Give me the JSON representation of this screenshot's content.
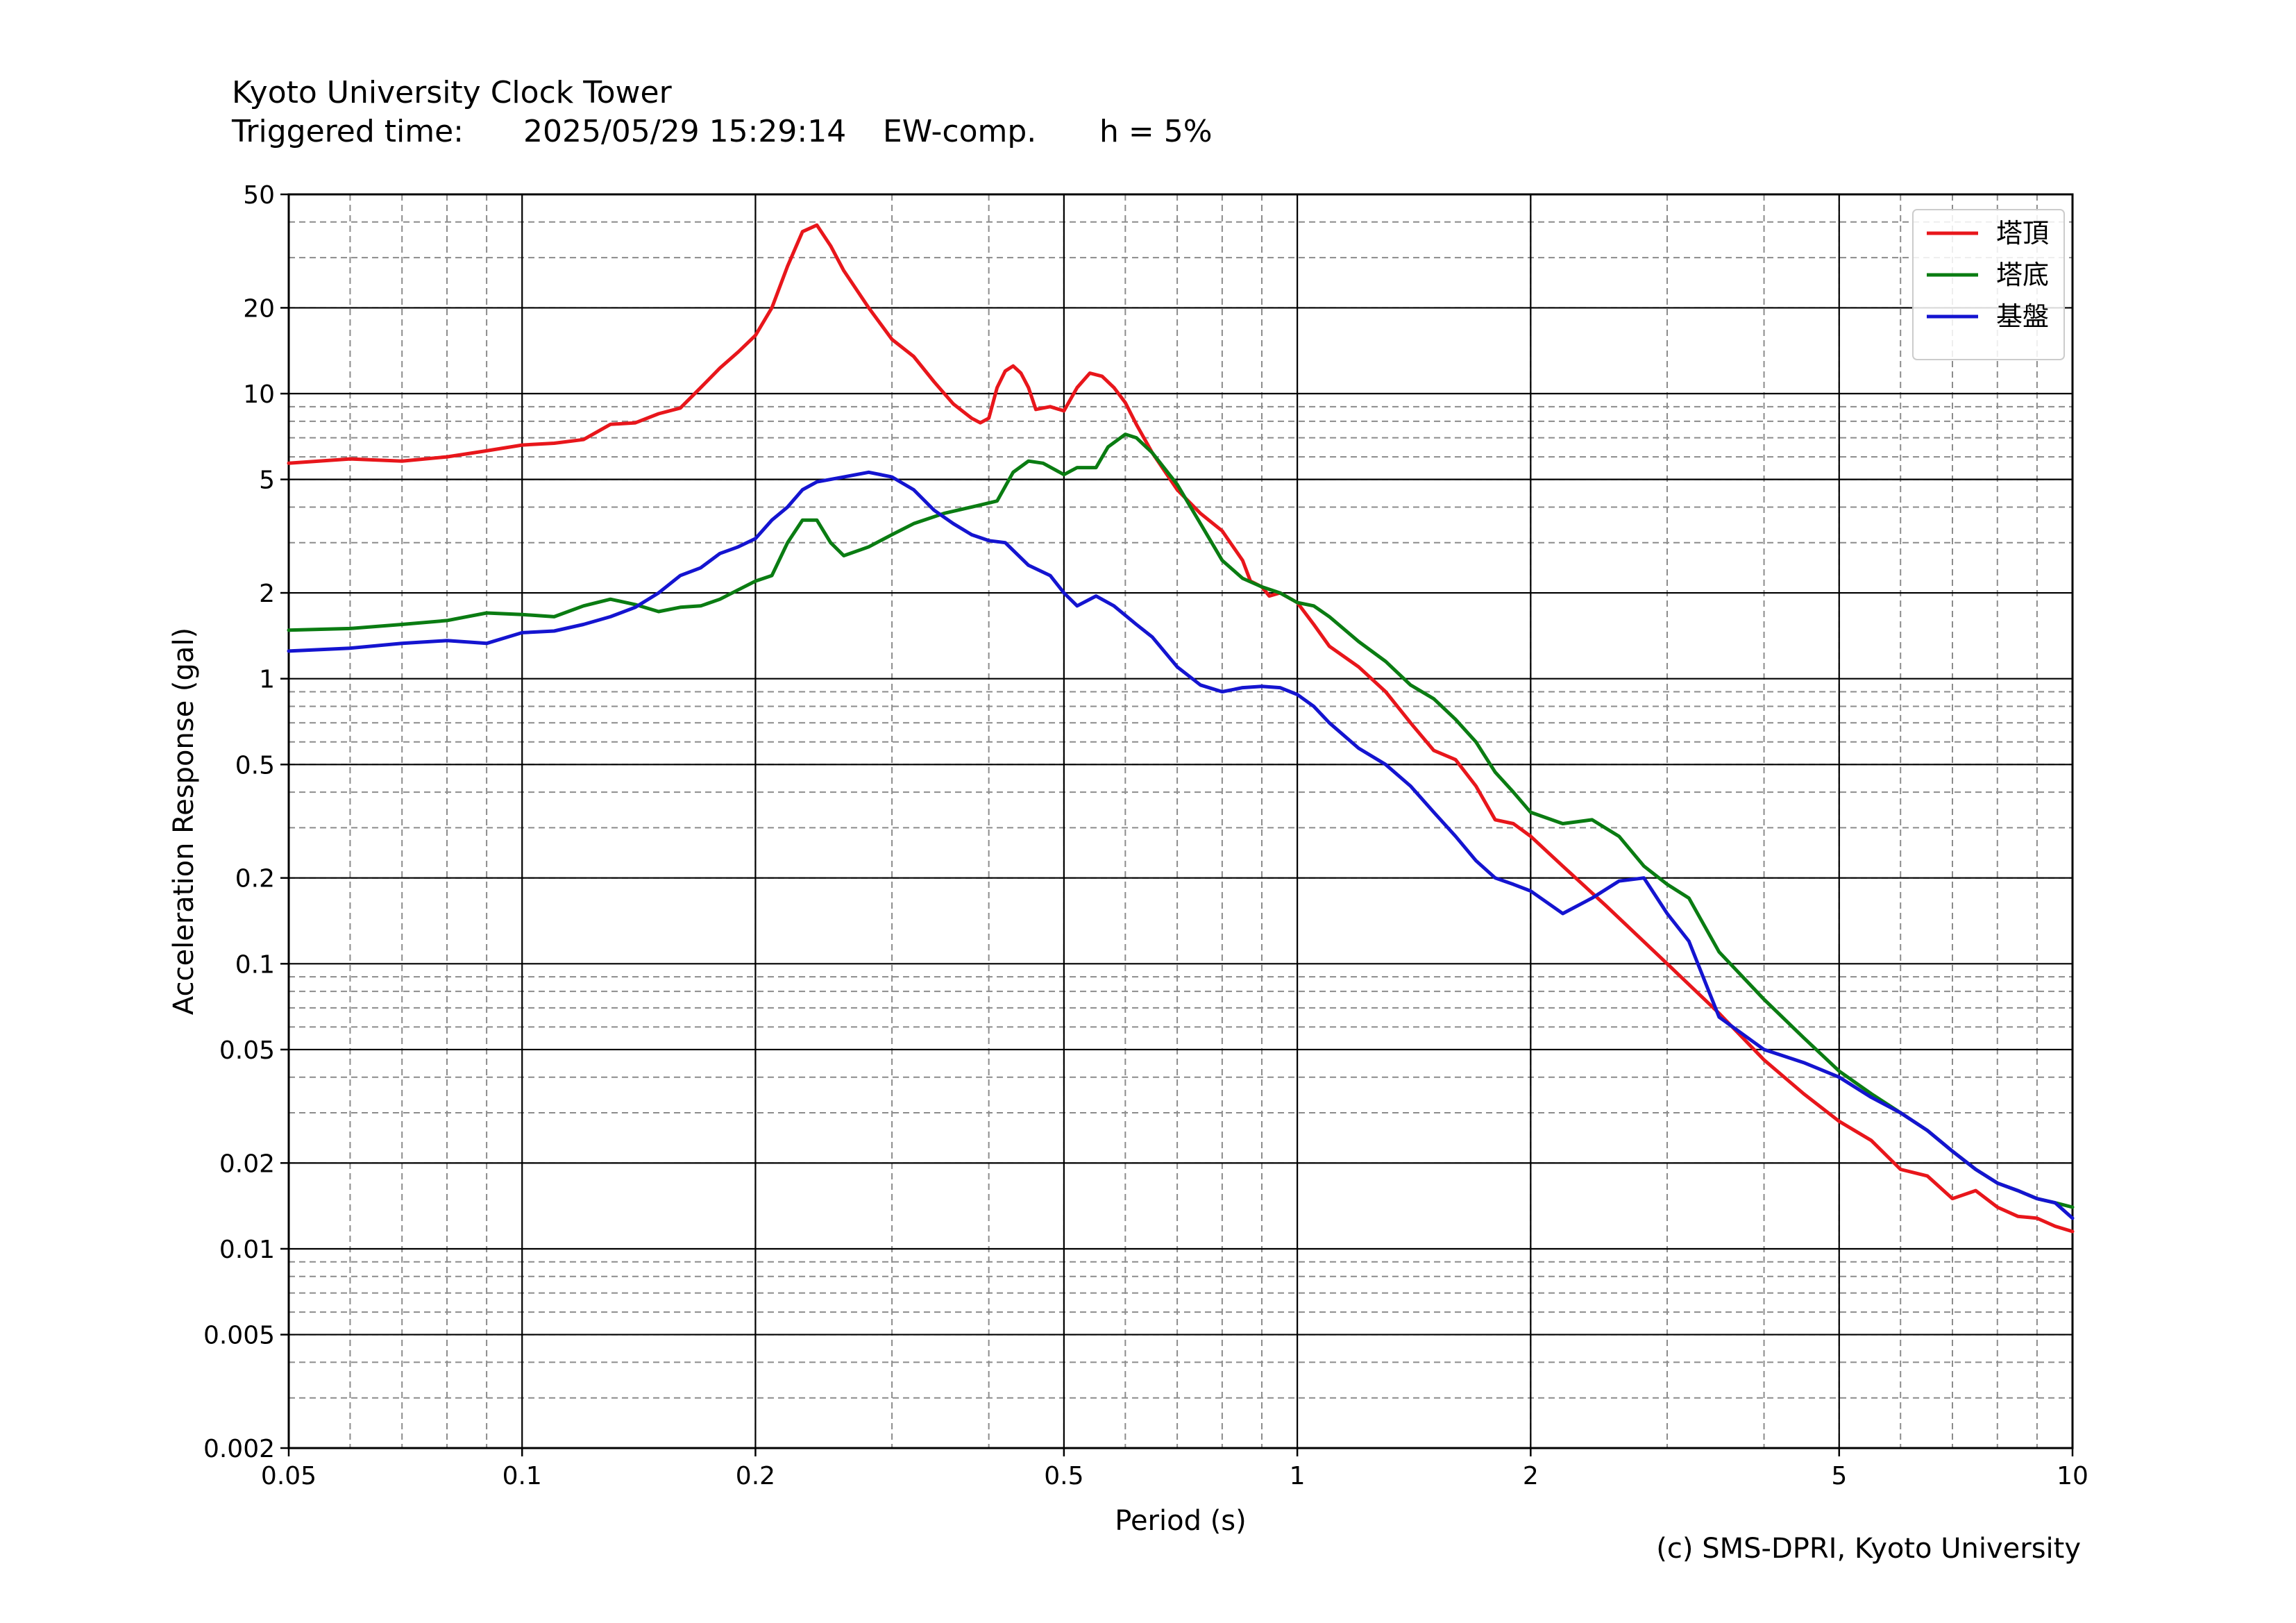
{
  "header": {
    "title": "Kyoto University Clock Tower",
    "triggered_label": "Triggered time:",
    "triggered_time": "2025/05/29 15:29:14",
    "component": "EW-comp.",
    "damping": "h = 5%"
  },
  "footer": {
    "copyright": "(c) SMS-DPRI, Kyoto University"
  },
  "chart_data": {
    "type": "line",
    "title": "",
    "xlabel": "Period (s)",
    "ylabel": "Acceleration Response (gal)",
    "xscale": "log",
    "yscale": "log",
    "xlim": [
      0.05,
      10
    ],
    "ylim": [
      0.002,
      50
    ],
    "grid": true,
    "legend_position": "top-right",
    "x_ticks": [
      0.05,
      0.1,
      0.2,
      0.5,
      1,
      2,
      5,
      10
    ],
    "x_tick_labels": [
      "0.05",
      "0.1",
      "0.2",
      "0.5",
      "1",
      "2",
      "5",
      "10"
    ],
    "y_ticks": [
      0.002,
      0.005,
      0.01,
      0.02,
      0.05,
      0.1,
      0.2,
      0.5,
      1,
      2,
      5,
      10,
      20,
      50
    ],
    "y_tick_labels": [
      "0.002",
      "0.005",
      "0.01",
      "0.02",
      "0.05",
      "0.1",
      "0.2",
      "0.5",
      "1",
      "2",
      "5",
      "10",
      "20",
      "50"
    ],
    "series": [
      {
        "name": "塔頂",
        "color": "#e8161b",
        "points": [
          [
            0.05,
            5.7
          ],
          [
            0.06,
            5.9
          ],
          [
            0.07,
            5.8
          ],
          [
            0.08,
            6.0
          ],
          [
            0.09,
            6.3
          ],
          [
            0.1,
            6.6
          ],
          [
            0.11,
            6.7
          ],
          [
            0.12,
            6.9
          ],
          [
            0.13,
            7.8
          ],
          [
            0.14,
            7.9
          ],
          [
            0.15,
            8.5
          ],
          [
            0.16,
            8.9
          ],
          [
            0.17,
            10.5
          ],
          [
            0.18,
            12.3
          ],
          [
            0.19,
            14.0
          ],
          [
            0.2,
            16.0
          ],
          [
            0.21,
            20
          ],
          [
            0.22,
            28
          ],
          [
            0.23,
            37
          ],
          [
            0.24,
            39
          ],
          [
            0.25,
            33
          ],
          [
            0.26,
            27
          ],
          [
            0.28,
            20
          ],
          [
            0.3,
            15.5
          ],
          [
            0.32,
            13.5
          ],
          [
            0.34,
            11
          ],
          [
            0.36,
            9.2
          ],
          [
            0.38,
            8.2
          ],
          [
            0.39,
            7.9
          ],
          [
            0.4,
            8.2
          ],
          [
            0.41,
            10.5
          ],
          [
            0.42,
            12.0
          ],
          [
            0.43,
            12.5
          ],
          [
            0.44,
            11.8
          ],
          [
            0.45,
            10.5
          ],
          [
            0.46,
            8.8
          ],
          [
            0.48,
            9.0
          ],
          [
            0.5,
            8.7
          ],
          [
            0.52,
            10.5
          ],
          [
            0.54,
            11.8
          ],
          [
            0.56,
            11.5
          ],
          [
            0.58,
            10.5
          ],
          [
            0.6,
            9.3
          ],
          [
            0.62,
            7.8
          ],
          [
            0.65,
            6.2
          ],
          [
            0.7,
            4.6
          ],
          [
            0.75,
            3.8
          ],
          [
            0.8,
            3.3
          ],
          [
            0.85,
            2.6
          ],
          [
            0.87,
            2.2
          ],
          [
            0.9,
            2.1
          ],
          [
            0.92,
            1.95
          ],
          [
            0.95,
            2.0
          ],
          [
            1.0,
            1.85
          ],
          [
            1.05,
            1.55
          ],
          [
            1.1,
            1.3
          ],
          [
            1.2,
            1.1
          ],
          [
            1.3,
            0.9
          ],
          [
            1.4,
            0.7
          ],
          [
            1.5,
            0.56
          ],
          [
            1.6,
            0.52
          ],
          [
            1.7,
            0.42
          ],
          [
            1.8,
            0.32
          ],
          [
            1.9,
            0.31
          ],
          [
            2.0,
            0.28
          ],
          [
            2.2,
            0.22
          ],
          [
            2.5,
            0.16
          ],
          [
            3.0,
            0.1
          ],
          [
            3.5,
            0.067
          ],
          [
            4.0,
            0.046
          ],
          [
            4.5,
            0.035
          ],
          [
            5.0,
            0.028
          ],
          [
            5.5,
            0.024
          ],
          [
            6.0,
            0.019
          ],
          [
            6.5,
            0.018
          ],
          [
            7.0,
            0.015
          ],
          [
            7.5,
            0.016
          ],
          [
            8.0,
            0.014
          ],
          [
            8.5,
            0.013
          ],
          [
            9.0,
            0.0128
          ],
          [
            9.5,
            0.012
          ],
          [
            10.0,
            0.0115
          ]
        ]
      },
      {
        "name": "塔底",
        "color": "#0a7c12",
        "points": [
          [
            0.05,
            1.48
          ],
          [
            0.06,
            1.5
          ],
          [
            0.07,
            1.55
          ],
          [
            0.08,
            1.6
          ],
          [
            0.09,
            1.7
          ],
          [
            0.1,
            1.68
          ],
          [
            0.11,
            1.65
          ],
          [
            0.12,
            1.8
          ],
          [
            0.13,
            1.9
          ],
          [
            0.14,
            1.82
          ],
          [
            0.15,
            1.72
          ],
          [
            0.16,
            1.78
          ],
          [
            0.17,
            1.8
          ],
          [
            0.18,
            1.9
          ],
          [
            0.19,
            2.05
          ],
          [
            0.2,
            2.2
          ],
          [
            0.21,
            2.3
          ],
          [
            0.22,
            3.0
          ],
          [
            0.23,
            3.6
          ],
          [
            0.24,
            3.6
          ],
          [
            0.25,
            3.0
          ],
          [
            0.26,
            2.7
          ],
          [
            0.28,
            2.9
          ],
          [
            0.3,
            3.2
          ],
          [
            0.32,
            3.5
          ],
          [
            0.35,
            3.8
          ],
          [
            0.38,
            4.0
          ],
          [
            0.41,
            4.2
          ],
          [
            0.43,
            5.3
          ],
          [
            0.45,
            5.8
          ],
          [
            0.47,
            5.7
          ],
          [
            0.5,
            5.2
          ],
          [
            0.52,
            5.5
          ],
          [
            0.55,
            5.5
          ],
          [
            0.57,
            6.5
          ],
          [
            0.6,
            7.2
          ],
          [
            0.62,
            7.0
          ],
          [
            0.65,
            6.2
          ],
          [
            0.7,
            4.8
          ],
          [
            0.75,
            3.5
          ],
          [
            0.8,
            2.6
          ],
          [
            0.85,
            2.25
          ],
          [
            0.9,
            2.1
          ],
          [
            0.95,
            2.0
          ],
          [
            1.0,
            1.85
          ],
          [
            1.05,
            1.8
          ],
          [
            1.1,
            1.65
          ],
          [
            1.2,
            1.35
          ],
          [
            1.3,
            1.15
          ],
          [
            1.4,
            0.95
          ],
          [
            1.5,
            0.85
          ],
          [
            1.6,
            0.72
          ],
          [
            1.7,
            0.6
          ],
          [
            1.8,
            0.47
          ],
          [
            1.9,
            0.4
          ],
          [
            2.0,
            0.34
          ],
          [
            2.2,
            0.31
          ],
          [
            2.4,
            0.32
          ],
          [
            2.6,
            0.28
          ],
          [
            2.8,
            0.22
          ],
          [
            3.0,
            0.19
          ],
          [
            3.2,
            0.17
          ],
          [
            3.5,
            0.11
          ],
          [
            4.0,
            0.075
          ],
          [
            4.5,
            0.055
          ],
          [
            5.0,
            0.042
          ],
          [
            5.5,
            0.035
          ],
          [
            6.0,
            0.03
          ],
          [
            6.5,
            0.026
          ],
          [
            7.0,
            0.022
          ],
          [
            7.5,
            0.019
          ],
          [
            8.0,
            0.017
          ],
          [
            8.5,
            0.016
          ],
          [
            9.0,
            0.015
          ],
          [
            9.5,
            0.0145
          ],
          [
            10.0,
            0.014
          ]
        ]
      },
      {
        "name": "基盤",
        "color": "#1414d0",
        "points": [
          [
            0.05,
            1.25
          ],
          [
            0.06,
            1.28
          ],
          [
            0.07,
            1.33
          ],
          [
            0.08,
            1.36
          ],
          [
            0.09,
            1.33
          ],
          [
            0.1,
            1.45
          ],
          [
            0.11,
            1.47
          ],
          [
            0.12,
            1.55
          ],
          [
            0.13,
            1.65
          ],
          [
            0.14,
            1.78
          ],
          [
            0.15,
            2.0
          ],
          [
            0.16,
            2.3
          ],
          [
            0.17,
            2.45
          ],
          [
            0.18,
            2.75
          ],
          [
            0.19,
            2.9
          ],
          [
            0.2,
            3.1
          ],
          [
            0.21,
            3.6
          ],
          [
            0.22,
            4.0
          ],
          [
            0.23,
            4.6
          ],
          [
            0.24,
            4.9
          ],
          [
            0.25,
            5.0
          ],
          [
            0.26,
            5.1
          ],
          [
            0.28,
            5.3
          ],
          [
            0.3,
            5.1
          ],
          [
            0.32,
            4.6
          ],
          [
            0.34,
            3.9
          ],
          [
            0.36,
            3.5
          ],
          [
            0.38,
            3.2
          ],
          [
            0.4,
            3.05
          ],
          [
            0.42,
            3.0
          ],
          [
            0.45,
            2.5
          ],
          [
            0.48,
            2.3
          ],
          [
            0.5,
            2.0
          ],
          [
            0.52,
            1.8
          ],
          [
            0.55,
            1.95
          ],
          [
            0.58,
            1.8
          ],
          [
            0.62,
            1.55
          ],
          [
            0.65,
            1.4
          ],
          [
            0.7,
            1.1
          ],
          [
            0.75,
            0.95
          ],
          [
            0.8,
            0.9
          ],
          [
            0.85,
            0.93
          ],
          [
            0.9,
            0.94
          ],
          [
            0.95,
            0.93
          ],
          [
            1.0,
            0.88
          ],
          [
            1.05,
            0.8
          ],
          [
            1.1,
            0.7
          ],
          [
            1.2,
            0.57
          ],
          [
            1.3,
            0.5
          ],
          [
            1.4,
            0.42
          ],
          [
            1.5,
            0.34
          ],
          [
            1.6,
            0.28
          ],
          [
            1.7,
            0.23
          ],
          [
            1.8,
            0.2
          ],
          [
            1.9,
            0.19
          ],
          [
            2.0,
            0.18
          ],
          [
            2.2,
            0.15
          ],
          [
            2.4,
            0.17
          ],
          [
            2.6,
            0.195
          ],
          [
            2.8,
            0.2
          ],
          [
            3.0,
            0.15
          ],
          [
            3.2,
            0.12
          ],
          [
            3.5,
            0.065
          ],
          [
            4.0,
            0.05
          ],
          [
            4.5,
            0.045
          ],
          [
            5.0,
            0.04
          ],
          [
            5.5,
            0.034
          ],
          [
            6.0,
            0.03
          ],
          [
            6.5,
            0.026
          ],
          [
            7.0,
            0.022
          ],
          [
            7.5,
            0.019
          ],
          [
            8.0,
            0.017
          ],
          [
            8.5,
            0.016
          ],
          [
            9.0,
            0.015
          ],
          [
            9.5,
            0.0145
          ],
          [
            10.0,
            0.0128
          ]
        ]
      }
    ]
  }
}
